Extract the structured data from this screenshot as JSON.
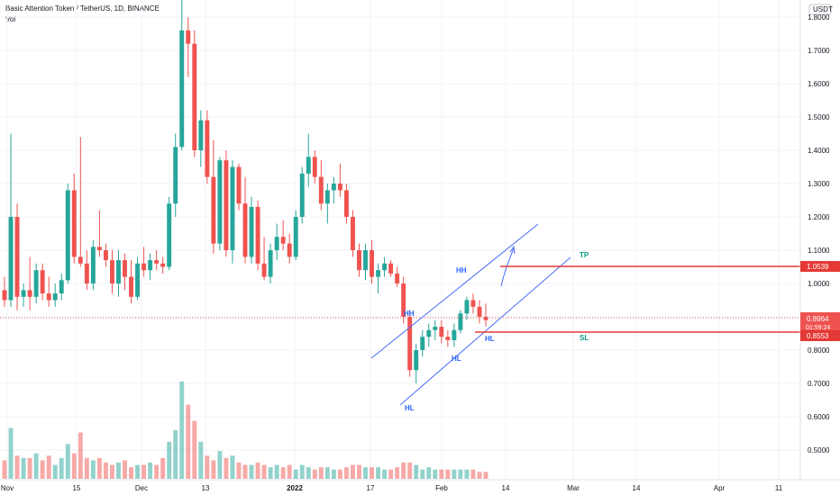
{
  "header": {
    "title": "Basic Attention Token / TetherUS, 1D, BINANCE",
    "indicator": "Vol"
  },
  "colors": {
    "up": "#26a69a",
    "down": "#ef5350",
    "line_red": "#e53935",
    "channel_blue": "#4a6cf7",
    "label_blue": "#2962ff",
    "label_green": "#089981"
  },
  "price_axis": {
    "currency": "USDT",
    "ticks": [
      "1.8000",
      "1.7000",
      "1.6000",
      "1.5000",
      "1.4000",
      "1.3000",
      "1.2000",
      "1.1000",
      "1.0000",
      "0.9000",
      "0.8000",
      "0.7000",
      "0.6000",
      "0.5000"
    ],
    "current_price": "0.8964",
    "countdown": "01:59:24",
    "tp_price": "1.0539",
    "sl_price": "0.8553"
  },
  "time_axis": {
    "ticks": [
      "Nov",
      "15",
      "Dec",
      "13",
      "2022",
      "17",
      "Feb",
      "14",
      "Mar",
      "14",
      "Apr",
      "11"
    ]
  },
  "annotations": {
    "hh1": "HH",
    "hh2": "HH",
    "hl1": "HL",
    "hl2": "HL",
    "hl3": "HL",
    "tp": "TP",
    "sl": "SL"
  },
  "chart_data": {
    "type": "candlestick",
    "symbol": "BATUSDT",
    "interval": "1D",
    "ylim": [
      0.42,
      1.84
    ],
    "candles": [
      [
        0.98,
        1.02,
        0.93,
        0.95
      ],
      [
        0.95,
        1.45,
        0.93,
        1.2
      ],
      [
        1.2,
        1.24,
        0.92,
        0.96
      ],
      [
        0.96,
        1.0,
        0.93,
        0.98
      ],
      [
        0.98,
        1.08,
        0.92,
        0.96
      ],
      [
        0.96,
        1.06,
        0.94,
        1.04
      ],
      [
        1.04,
        1.06,
        0.95,
        0.97
      ],
      [
        0.97,
        1.02,
        0.93,
        0.95
      ],
      [
        0.95,
        1.0,
        0.93,
        0.97
      ],
      [
        0.97,
        1.03,
        0.95,
        1.01
      ],
      [
        1.01,
        1.3,
        1.0,
        1.28
      ],
      [
        1.28,
        1.33,
        1.06,
        1.08
      ],
      [
        1.08,
        1.44,
        1.05,
        1.06
      ],
      [
        1.06,
        1.1,
        0.98,
        1.0
      ],
      [
        1.0,
        1.13,
        0.98,
        1.11
      ],
      [
        1.11,
        1.22,
        1.08,
        1.1
      ],
      [
        1.1,
        1.12,
        1.05,
        1.07
      ],
      [
        1.07,
        1.1,
        0.97,
        1.0
      ],
      [
        1.0,
        1.1,
        0.96,
        1.07
      ],
      [
        1.07,
        1.09,
        0.98,
        1.02
      ],
      [
        1.02,
        1.07,
        0.94,
        0.96
      ],
      [
        0.96,
        1.08,
        0.95,
        1.06
      ],
      [
        1.06,
        1.11,
        1.02,
        1.04
      ],
      [
        1.04,
        1.09,
        1.01,
        1.07
      ],
      [
        1.07,
        1.1,
        1.04,
        1.06
      ],
      [
        1.06,
        1.08,
        1.03,
        1.05
      ],
      [
        1.05,
        1.26,
        1.04,
        1.24
      ],
      [
        1.24,
        1.45,
        1.2,
        1.41
      ],
      [
        1.41,
        1.98,
        1.4,
        1.76
      ],
      [
        1.76,
        1.8,
        1.62,
        1.72
      ],
      [
        1.72,
        1.76,
        1.38,
        1.4
      ],
      [
        1.4,
        1.52,
        1.35,
        1.49
      ],
      [
        1.49,
        1.52,
        1.3,
        1.32
      ],
      [
        1.32,
        1.43,
        1.09,
        1.12
      ],
      [
        1.12,
        1.38,
        1.1,
        1.37
      ],
      [
        1.37,
        1.4,
        1.08,
        1.1
      ],
      [
        1.1,
        1.37,
        1.06,
        1.35
      ],
      [
        1.35,
        1.36,
        1.22,
        1.24
      ],
      [
        1.24,
        1.32,
        1.06,
        1.08
      ],
      [
        1.08,
        1.26,
        1.06,
        1.23
      ],
      [
        1.23,
        1.25,
        1.04,
        1.06
      ],
      [
        1.06,
        1.14,
        1.01,
        1.02
      ],
      [
        1.02,
        1.12,
        1.0,
        1.1
      ],
      [
        1.1,
        1.18,
        1.07,
        1.14
      ],
      [
        1.14,
        1.19,
        1.1,
        1.12
      ],
      [
        1.12,
        1.15,
        1.06,
        1.08
      ],
      [
        1.08,
        1.22,
        1.07,
        1.2
      ],
      [
        1.2,
        1.35,
        1.18,
        1.33
      ],
      [
        1.33,
        1.45,
        1.29,
        1.38
      ],
      [
        1.38,
        1.4,
        1.3,
        1.32
      ],
      [
        1.32,
        1.37,
        1.22,
        1.24
      ],
      [
        1.24,
        1.3,
        1.18,
        1.28
      ],
      [
        1.28,
        1.32,
        1.24,
        1.3
      ],
      [
        1.3,
        1.36,
        1.26,
        1.28
      ],
      [
        1.28,
        1.3,
        1.18,
        1.2
      ],
      [
        1.2,
        1.22,
        1.08,
        1.1
      ],
      [
        1.1,
        1.12,
        1.02,
        1.04
      ],
      [
        1.04,
        1.12,
        1.01,
        1.1
      ],
      [
        1.1,
        1.13,
        1.0,
        1.02
      ],
      [
        1.02,
        1.06,
        0.97,
        1.04
      ],
      [
        1.04,
        1.08,
        1.02,
        1.06
      ],
      [
        1.06,
        1.07,
        1.02,
        1.03
      ],
      [
        1.03,
        1.05,
        0.99,
        1.0
      ],
      [
        1.0,
        1.02,
        0.88,
        0.9
      ],
      [
        0.9,
        0.92,
        0.72,
        0.74
      ],
      [
        0.74,
        0.82,
        0.7,
        0.8
      ],
      [
        0.8,
        0.86,
        0.78,
        0.84
      ],
      [
        0.84,
        0.88,
        0.81,
        0.86
      ],
      [
        0.86,
        0.89,
        0.83,
        0.87
      ],
      [
        0.87,
        0.89,
        0.82,
        0.84
      ],
      [
        0.84,
        0.86,
        0.81,
        0.83
      ],
      [
        0.83,
        0.88,
        0.81,
        0.86
      ],
      [
        0.86,
        0.92,
        0.85,
        0.91
      ],
      [
        0.91,
        0.96,
        0.89,
        0.95
      ],
      [
        0.95,
        0.97,
        0.91,
        0.93
      ],
      [
        0.93,
        0.95,
        0.88,
        0.9
      ],
      [
        0.9,
        0.94,
        0.87,
        0.89
      ]
    ],
    "volume": [
      0.8,
      2.2,
      1.0,
      0.9,
      0.9,
      1.1,
      0.8,
      1.0,
      0.6,
      0.9,
      1.5,
      1.1,
      2.0,
      0.9,
      0.8,
      0.9,
      0.7,
      0.6,
      0.7,
      0.8,
      0.5,
      0.6,
      0.6,
      0.7,
      0.6,
      0.9,
      1.6,
      2.1,
      4.2,
      3.2,
      2.5,
      1.6,
      1.0,
      0.8,
      1.2,
      0.9,
      1.0,
      0.7,
      0.6,
      0.6,
      0.7,
      0.6,
      0.5,
      0.6,
      0.5,
      0.6,
      0.4,
      0.6,
      0.5,
      0.4,
      0.5,
      0.5,
      0.4,
      0.4,
      0.5,
      0.6,
      0.6,
      0.5,
      0.5,
      0.5,
      0.4,
      0.4,
      0.5,
      0.7,
      0.7,
      0.6,
      0.4,
      0.5,
      0.4,
      0.4,
      0.4,
      0.4,
      0.4,
      0.4,
      0.4,
      0.3,
      0.3
    ]
  }
}
